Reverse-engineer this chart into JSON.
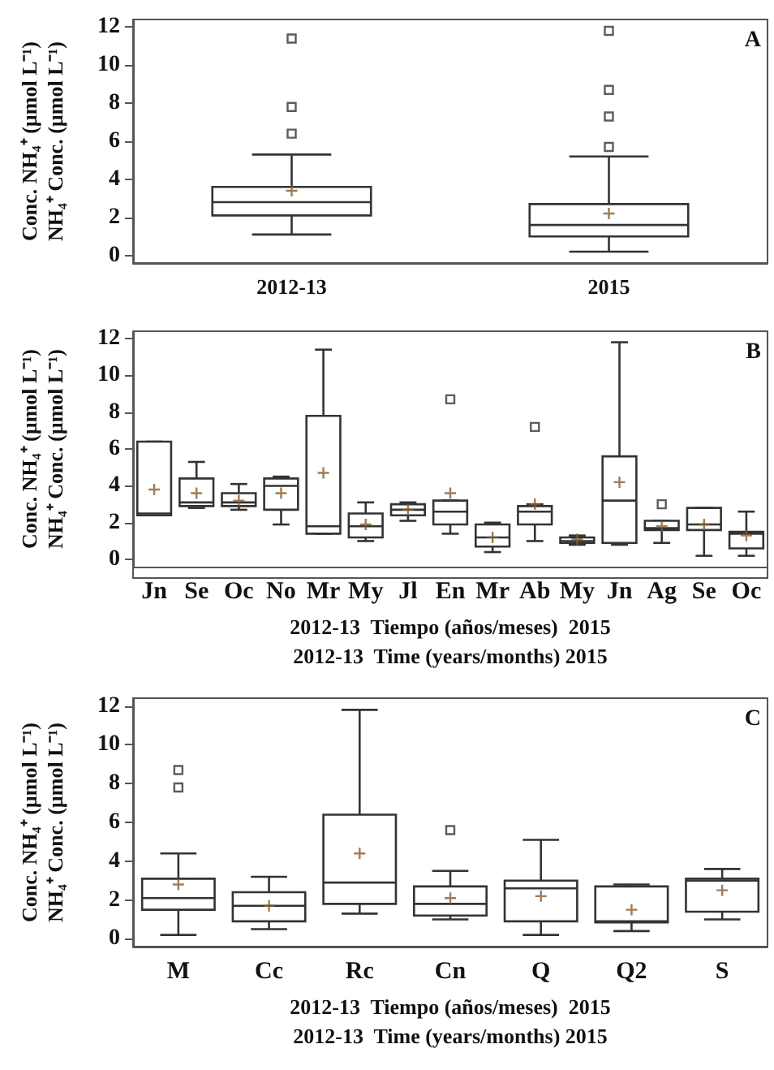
{
  "chart_data": [
    {
      "type": "box",
      "ylabel": "Conc. NH₄⁺ (µmol L⁻¹)\nNH₄⁺ Conc. (µmol L⁻¹)",
      "annotations": [
        "A"
      ],
      "categories": [
        "2012-13",
        "2015"
      ],
      "color": "#333333",
      "ylim": [
        -0.4,
        12.4
      ],
      "yticks": [
        0,
        2,
        4,
        6,
        8,
        10,
        12
      ],
      "grid": false,
      "boxes": [
        {
          "low": 1.1,
          "q1": 2.1,
          "median": 2.8,
          "q3": 3.6,
          "high": 5.3,
          "mean": 3.4,
          "outliers": [
            6.4,
            7.8,
            11.4
          ]
        },
        {
          "low": 0.2,
          "q1": 1.0,
          "median": 1.6,
          "q3": 2.7,
          "high": 5.2,
          "mean": 2.2,
          "outliers": [
            5.7,
            7.3,
            8.7,
            11.8
          ]
        }
      ]
    },
    {
      "type": "box",
      "ylabel": "Conc. NH₄⁺ (µmol L⁻¹)\nNH₄⁺ Conc. (µmol L⁻¹)",
      "xlabel": "2012-13  Tiempo (años/meses)  2015\n2012-13  Time (years/months) 2015",
      "annotations": [
        "B"
      ],
      "categories": [
        "Jn",
        "Se",
        "Oc",
        "No",
        "Mr",
        "My",
        "Jl",
        "En",
        "Mr",
        "Ab",
        "My",
        "Jn",
        "Ag",
        "Se",
        "Oc"
      ],
      "color": "#333333",
      "ylim": [
        -0.4,
        12.4
      ],
      "yticks": [
        0,
        2,
        4,
        6,
        8,
        10,
        12
      ],
      "grid": false,
      "boxes": [
        {
          "low": 2.4,
          "q1": 2.4,
          "median": 2.5,
          "q3": 6.4,
          "high": 6.4,
          "mean": 3.8
        },
        {
          "low": 2.8,
          "q1": 2.9,
          "median": 3.1,
          "q3": 4.4,
          "high": 5.3,
          "mean": 3.6
        },
        {
          "low": 2.7,
          "q1": 2.9,
          "median": 3.1,
          "q3": 3.6,
          "high": 4.1,
          "mean": 3.2
        },
        {
          "low": 1.9,
          "q1": 2.7,
          "median": 4.0,
          "q3": 4.4,
          "high": 4.5,
          "mean": 3.6
        },
        {
          "low": 1.4,
          "q1": 1.4,
          "median": 1.8,
          "q3": 7.8,
          "high": 11.4,
          "mean": 4.7
        },
        {
          "low": 1.0,
          "q1": 1.2,
          "median": 1.8,
          "q3": 2.5,
          "high": 3.1,
          "mean": 1.9
        },
        {
          "low": 2.1,
          "q1": 2.4,
          "median": 2.7,
          "q3": 3.0,
          "high": 3.1,
          "mean": 2.7
        },
        {
          "low": 1.4,
          "q1": 1.9,
          "median": 2.6,
          "q3": 3.2,
          "high": 3.2,
          "mean": 3.6,
          "outliers": [
            8.7
          ]
        },
        {
          "low": 0.4,
          "q1": 0.7,
          "median": 1.2,
          "q3": 1.9,
          "high": 2.0,
          "mean": 1.2
        },
        {
          "low": 1.0,
          "q1": 1.9,
          "median": 2.6,
          "q3": 2.9,
          "high": 3.0,
          "mean": 3.0,
          "outliers": [
            7.2
          ]
        },
        {
          "low": 0.8,
          "q1": 0.9,
          "median": 1.0,
          "q3": 1.2,
          "high": 1.3,
          "mean": 1.1
        },
        {
          "low": 0.8,
          "q1": 0.9,
          "median": 3.2,
          "q3": 5.6,
          "high": 11.8,
          "mean": 4.2
        },
        {
          "low": 0.9,
          "q1": 1.6,
          "median": 1.7,
          "q3": 2.1,
          "high": 2.1,
          "mean": 1.8,
          "outliers": [
            3.0
          ]
        },
        {
          "low": 0.2,
          "q1": 1.6,
          "median": 1.9,
          "q3": 2.8,
          "high": 2.8,
          "mean": 1.9
        },
        {
          "low": 0.2,
          "q1": 0.6,
          "median": 1.4,
          "q3": 1.5,
          "high": 2.6,
          "mean": 1.3
        }
      ]
    },
    {
      "type": "box",
      "ylabel": "Conc. NH₄⁺ (µmol L⁻¹)\nNH₄⁺ Conc. (µmol L⁻¹)",
      "xlabel": "2012-13  Tiempo (años/meses)  2015\n2012-13  Time (years/months) 2015",
      "annotations": [
        "C"
      ],
      "categories": [
        "M",
        "Cc",
        "Rc",
        "Cn",
        "Q",
        "Q2",
        "S"
      ],
      "color": "#333333",
      "ylim": [
        -0.4,
        12.4
      ],
      "yticks": [
        0,
        2,
        4,
        6,
        8,
        10,
        12
      ],
      "grid": false,
      "boxes": [
        {
          "low": 0.2,
          "q1": 1.5,
          "median": 2.1,
          "q3": 3.1,
          "high": 4.4,
          "mean": 2.8,
          "outliers": [
            7.8,
            8.7
          ]
        },
        {
          "low": 0.5,
          "q1": 0.9,
          "median": 1.7,
          "q3": 2.4,
          "high": 3.2,
          "mean": 1.7
        },
        {
          "low": 1.3,
          "q1": 1.8,
          "median": 2.9,
          "q3": 6.4,
          "high": 11.8,
          "mean": 4.4
        },
        {
          "low": 1.0,
          "q1": 1.2,
          "median": 1.8,
          "q3": 2.7,
          "high": 3.5,
          "mean": 2.1,
          "outliers": [
            5.6
          ]
        },
        {
          "low": 0.2,
          "q1": 0.9,
          "median": 2.6,
          "q3": 3.0,
          "high": 5.1,
          "mean": 2.2
        },
        {
          "low": 0.4,
          "q1": 0.85,
          "median": 0.9,
          "q3": 2.7,
          "high": 2.8,
          "mean": 1.5
        },
        {
          "low": 1.0,
          "q1": 1.4,
          "median": 3.0,
          "q3": 3.1,
          "high": 3.6,
          "mean": 2.5
        }
      ]
    }
  ]
}
